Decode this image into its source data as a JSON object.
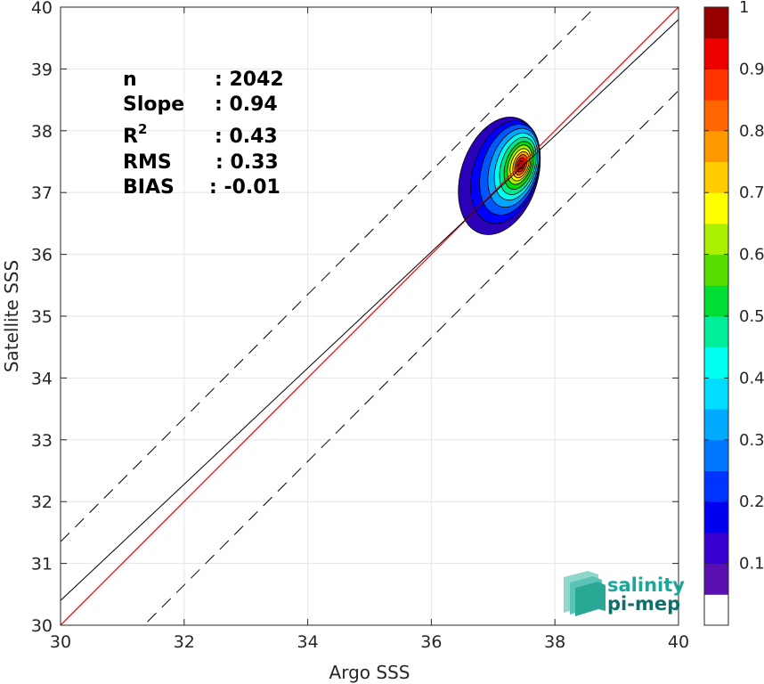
{
  "chart_data": {
    "type": "heatmap",
    "xlabel": "Argo SSS",
    "ylabel": "Satellite SSS",
    "xlim": [
      30,
      40
    ],
    "ylim": [
      30,
      40
    ],
    "xticks": [
      "30",
      "32",
      "34",
      "36",
      "38",
      "40"
    ],
    "yticks": [
      "30",
      "31",
      "32",
      "33",
      "34",
      "35",
      "36",
      "37",
      "38",
      "39",
      "40"
    ],
    "grid": true,
    "stats": [
      {
        "label": "n",
        "sep": ":",
        "value": "2042"
      },
      {
        "label": "Slope",
        "sep": ":",
        "value": "0.94"
      },
      {
        "label": "R",
        "sup": "2",
        "sep": ":",
        "value": "0.43"
      },
      {
        "label": "RMS",
        "sep": ":",
        "value": "0.33"
      },
      {
        "label": "BIAS",
        "sep": ":",
        "value": "-0.01"
      }
    ],
    "lines": {
      "one_to_one": {
        "x": [
          30,
          40
        ],
        "y": [
          30,
          40
        ],
        "color": "#ff0000"
      },
      "regression": {
        "x": [
          30,
          40
        ],
        "y": [
          30.4,
          39.8
        ],
        "color": "#000000"
      },
      "upper_bound": {
        "x": [
          30,
          40
        ],
        "y": [
          31.35,
          41.35
        ],
        "color": "#000000",
        "style": "dashed"
      },
      "lower_bound": {
        "x": [
          30,
          40
        ],
        "y": [
          28.65,
          38.65
        ],
        "color": "#000000",
        "style": "dashed"
      }
    },
    "density_center": {
      "x": 37.45,
      "y": 37.45
    },
    "density_levels": [
      {
        "level": 0.05,
        "color": "#2a00b8",
        "rx": 0.62,
        "ry": 0.98,
        "dx": -0.35,
        "dy": -0.18
      },
      {
        "level": 0.15,
        "color": "#0000ff",
        "rx": 0.52,
        "ry": 0.86,
        "dx": -0.25,
        "dy": -0.12
      },
      {
        "level": 0.2,
        "color": "#0055ff",
        "rx": 0.45,
        "ry": 0.76,
        "dx": -0.18,
        "dy": -0.08
      },
      {
        "level": 0.3,
        "color": "#00a6ff",
        "rx": 0.38,
        "ry": 0.66,
        "dx": -0.12,
        "dy": -0.05
      },
      {
        "level": 0.4,
        "color": "#00ffee",
        "rx": 0.32,
        "ry": 0.56,
        "dx": -0.08,
        "dy": -0.03
      },
      {
        "level": 0.45,
        "color": "#00e68a",
        "rx": 0.27,
        "ry": 0.48,
        "dx": -0.05,
        "dy": -0.02
      },
      {
        "level": 0.55,
        "color": "#00dd00",
        "rx": 0.22,
        "ry": 0.4,
        "dx": -0.03,
        "dy": -0.01
      },
      {
        "level": 0.6,
        "color": "#aaee00",
        "rx": 0.18,
        "ry": 0.33,
        "dx": -0.02,
        "dy": 0.0
      },
      {
        "level": 0.7,
        "color": "#ffff00",
        "rx": 0.15,
        "ry": 0.27,
        "dx": -0.01,
        "dy": 0.0
      },
      {
        "level": 0.75,
        "color": "#ffaa00",
        "rx": 0.12,
        "ry": 0.22,
        "dx": 0.0,
        "dy": 0.0
      },
      {
        "level": 0.85,
        "color": "#ff5500",
        "rx": 0.09,
        "ry": 0.17,
        "dx": 0.0,
        "dy": 0.0
      },
      {
        "level": 0.9,
        "color": "#ff0000",
        "rx": 0.065,
        "ry": 0.12,
        "dx": 0.0,
        "dy": 0.0
      },
      {
        "level": 0.97,
        "color": "#aa0000",
        "rx": 0.04,
        "ry": 0.07,
        "dx": 0.0,
        "dy": 0.0
      }
    ],
    "colorbar": {
      "min": 0,
      "max": 1,
      "labels": [
        "0.1",
        "0.2",
        "0.3",
        "0.4",
        "0.5",
        "0.6",
        "0.7",
        "0.8",
        "0.9",
        "1"
      ],
      "label_values": [
        0.1,
        0.2,
        0.3,
        0.4,
        0.5,
        0.6,
        0.7,
        0.8,
        0.9,
        1.0
      ],
      "bands": [
        {
          "from": 0.0,
          "to": 0.05,
          "color": "#ffffff"
        },
        {
          "from": 0.05,
          "to": 0.1,
          "color": "#5a0fb0"
        },
        {
          "from": 0.1,
          "to": 0.15,
          "color": "#3a00d0"
        },
        {
          "from": 0.15,
          "to": 0.2,
          "color": "#0000f0"
        },
        {
          "from": 0.2,
          "to": 0.25,
          "color": "#0033ff"
        },
        {
          "from": 0.25,
          "to": 0.3,
          "color": "#0077ff"
        },
        {
          "from": 0.3,
          "to": 0.35,
          "color": "#00aaff"
        },
        {
          "from": 0.35,
          "to": 0.4,
          "color": "#00ddff"
        },
        {
          "from": 0.4,
          "to": 0.45,
          "color": "#00ffee"
        },
        {
          "from": 0.45,
          "to": 0.5,
          "color": "#00ee99"
        },
        {
          "from": 0.5,
          "to": 0.55,
          "color": "#00dd33"
        },
        {
          "from": 0.55,
          "to": 0.6,
          "color": "#55dd00"
        },
        {
          "from": 0.6,
          "to": 0.65,
          "color": "#aaee00"
        },
        {
          "from": 0.65,
          "to": 0.7,
          "color": "#ffff00"
        },
        {
          "from": 0.7,
          "to": 0.75,
          "color": "#ffcc00"
        },
        {
          "from": 0.75,
          "to": 0.8,
          "color": "#ff9900"
        },
        {
          "from": 0.8,
          "to": 0.85,
          "color": "#ff6600"
        },
        {
          "from": 0.85,
          "to": 0.9,
          "color": "#ff3300"
        },
        {
          "from": 0.9,
          "to": 0.95,
          "color": "#ee0000"
        },
        {
          "from": 0.95,
          "to": 1.0,
          "color": "#990000"
        }
      ]
    }
  },
  "logo": {
    "line1": "salinity",
    "line2": "pi-mep",
    "colors": {
      "text1": "#1aa79a",
      "text2": "#0f6f6a",
      "mark": "#3cb8a8"
    }
  }
}
